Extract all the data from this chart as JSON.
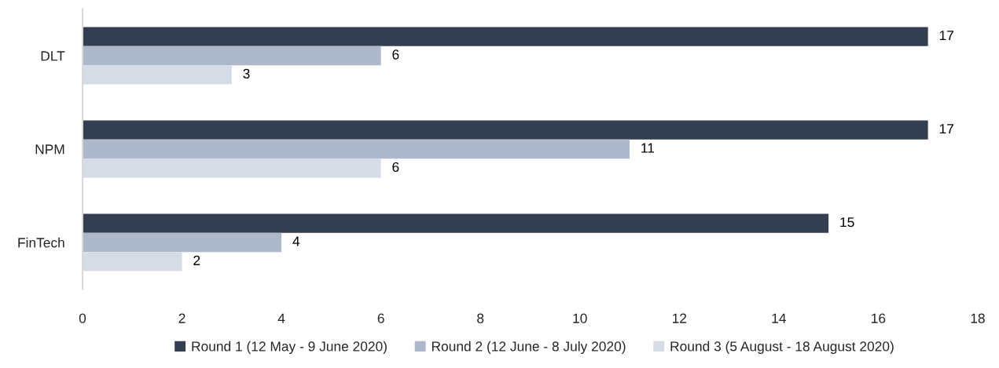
{
  "chart_data": {
    "type": "bar",
    "orientation": "horizontal",
    "categories": [
      "DLT",
      "NPM",
      "FinTech"
    ],
    "series": [
      {
        "name": "Round 1 (12 May - 9 June 2020)",
        "color": "#333f50",
        "values": [
          17,
          17,
          15
        ]
      },
      {
        "name": "Round 2 (12 June - 8 July 2020)",
        "color": "#adb9ca",
        "values": [
          6,
          11,
          4
        ]
      },
      {
        "name": "Round 3 (5 August - 18 August 2020)",
        "color": "#d6dce5",
        "values": [
          3,
          6,
          2
        ]
      }
    ],
    "xlim": [
      0,
      18
    ],
    "xticks": [
      0,
      2,
      4,
      6,
      8,
      10,
      12,
      14,
      16,
      18
    ],
    "data_labels": true,
    "legend": "bottom",
    "grid": false
  }
}
